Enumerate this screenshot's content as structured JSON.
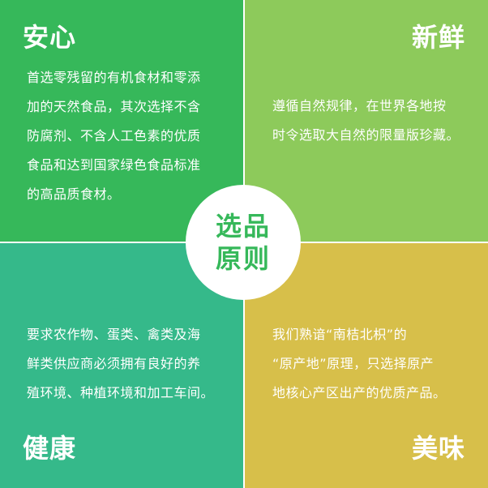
{
  "center": {
    "line1": "选品",
    "line2": "原则",
    "color": "#36b85a"
  },
  "quadrants": {
    "top_left": {
      "title": "安心",
      "color": "#36b85a",
      "lines": [
        "首选零残留的有机食材和零添",
        "加的天然食品，其次选择不含",
        "防腐剂、不含人工色素的优质",
        "食品和达到国家绿色食品标准",
        "的高品质食材。"
      ]
    },
    "top_right": {
      "title": "新鲜",
      "color": "#8dca5b",
      "lines": [
        "遵循自然规律，在世界各地按",
        "时令选取大自然的限量版珍藏。"
      ]
    },
    "bottom_left": {
      "title": "健康",
      "color": "#35b98a",
      "lines": [
        "要求农作物、蛋类、禽类及海",
        "鲜类供应商必须拥有良好的养",
        "殖环境、种植环境和加工车间。"
      ]
    },
    "bottom_right": {
      "title": "美味",
      "color": "#d7bf4a",
      "lines": [
        "我们熟谙“南桔北枳”的",
        "“原产地”原理，只选择原产",
        "地核心产区出产的优质产品。"
      ]
    }
  }
}
